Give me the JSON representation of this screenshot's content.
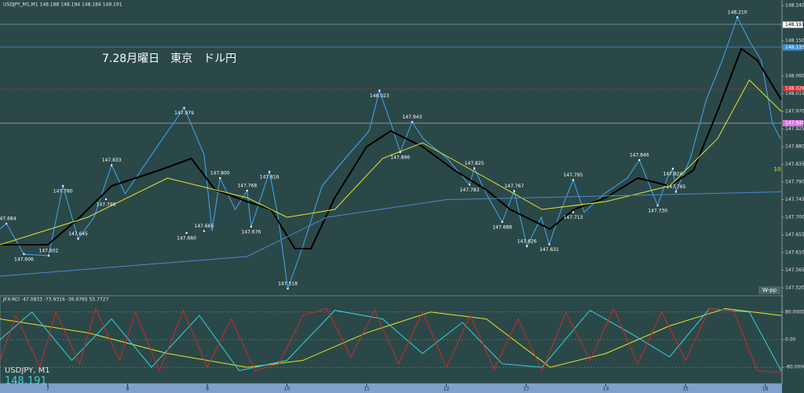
{
  "header": "USDJPY_M1,M1  148.188 148.194 148.184 148.191",
  "symbol": "USDJPY, M1",
  "price": "148.191",
  "pivot_label": "W-pp",
  "count_label": "10",
  "chart_data": [
    {
      "type": "line",
      "title": "7.28月曜日　東京　ドル円",
      "xlim": [
        6.4,
        16.2
      ],
      "xticks": [
        7,
        8,
        9,
        10,
        11,
        12,
        13,
        14,
        15,
        16
      ],
      "ylim": [
        147.504,
        148.254
      ],
      "yticks": [
        {
          "value": 148.24,
          "label": "148.240"
        },
        {
          "value": 148.15,
          "label": "148.150"
        },
        {
          "value": 148.06,
          "label": "148.060"
        },
        {
          "value": 148.015,
          "label": "148.015"
        },
        {
          "value": 147.97,
          "label": "147.970"
        },
        {
          "value": 147.925,
          "label": "147.925"
        },
        {
          "value": 147.88,
          "label": "147.880"
        },
        {
          "value": 147.835,
          "label": "147.835"
        },
        {
          "value": 147.79,
          "label": "147.790"
        },
        {
          "value": 147.745,
          "label": "147.745"
        },
        {
          "value": 147.7,
          "label": "147.700"
        },
        {
          "value": 147.655,
          "label": "147.655"
        },
        {
          "value": 147.61,
          "label": "147.610"
        },
        {
          "value": 147.565,
          "label": "147.565"
        },
        {
          "value": 147.52,
          "label": "147.520"
        }
      ],
      "markers": [
        {
          "value": 148.191,
          "label": "148.191",
          "color": "#ffffff"
        },
        {
          "value": 148.133,
          "label": "148.133",
          "color": "#3a8fd8"
        },
        {
          "value": 148.028,
          "label": "148.028",
          "color": "#d03030"
        },
        {
          "value": 147.94,
          "label": "147.940",
          "color": "#e070e0"
        }
      ],
      "series": [
        {
          "color": "#3fa9f5",
          "x": [
            6.4,
            6.48,
            6.7,
            7.01,
            7.19,
            7.38,
            7.58,
            7.8,
            7.97,
            8.37,
            8.71,
            8.96,
            9.06,
            9.16,
            9.35,
            9.5,
            9.55,
            9.78,
            9.89,
            10.01,
            10.19,
            10.44,
            10.73,
            11.03,
            11.16,
            11.32,
            11.42,
            11.57,
            11.71,
            12.01,
            12.29,
            12.35,
            12.5,
            12.7,
            12.85,
            13.01,
            13.19,
            13.29,
            13.44,
            13.59,
            13.73,
            13.98,
            14.27,
            14.42,
            14.65,
            14.77,
            14.84,
            14.88,
            15.06,
            15.26,
            15.46,
            15.65,
            15.8,
            15.95,
            16.09,
            16.19
          ],
          "values": [
            147.67,
            147.684,
            147.606,
            147.602,
            147.78,
            147.645,
            147.7,
            147.833,
            147.76,
            147.88,
            147.979,
            147.86,
            147.665,
            147.8,
            147.72,
            147.768,
            147.676,
            147.816,
            147.7,
            147.518,
            147.62,
            147.78,
            147.85,
            147.92,
            148.023,
            147.93,
            147.866,
            147.943,
            147.9,
            147.85,
            147.783,
            147.825,
            147.76,
            147.688,
            147.767,
            147.626,
            147.7,
            147.631,
            147.72,
            147.795,
            147.713,
            147.76,
            147.8,
            147.846,
            147.73,
            147.8,
            147.824,
            147.765,
            147.85,
            148.0,
            148.1,
            148.21,
            148.15,
            148.1,
            147.94,
            147.9
          ]
        },
        {
          "color": "#000000",
          "x": [
            6.4,
            7.0,
            7.4,
            7.8,
            8.4,
            8.8,
            9.1,
            9.5,
            9.8,
            10.1,
            10.3,
            10.6,
            11.0,
            11.3,
            11.7,
            12.1,
            12.5,
            12.8,
            13.3,
            13.6,
            14.0,
            14.4,
            14.8,
            15.1,
            15.4,
            15.7,
            15.9,
            16.2
          ],
          "values": [
            147.63,
            147.63,
            147.7,
            147.78,
            147.82,
            147.85,
            147.77,
            147.74,
            147.72,
            147.62,
            147.62,
            147.75,
            147.88,
            147.92,
            147.88,
            147.82,
            147.77,
            147.72,
            147.67,
            147.72,
            147.75,
            147.8,
            147.78,
            147.82,
            147.97,
            148.13,
            148.1,
            148.0
          ]
        },
        {
          "color": "#e6e62a",
          "x": [
            6.4,
            7.5,
            8.5,
            9.5,
            10.0,
            10.6,
            11.2,
            11.7,
            12.5,
            13.2,
            14.0,
            14.8,
            15.4,
            15.8,
            16.2
          ],
          "values": [
            147.63,
            147.7,
            147.8,
            147.75,
            147.7,
            147.72,
            147.85,
            147.89,
            147.8,
            147.72,
            147.74,
            147.78,
            147.9,
            148.05,
            147.97
          ]
        },
        {
          "color": "#4a8ad0",
          "x": [
            6.4,
            9.5,
            10.5,
            12.0,
            16.2
          ],
          "values": [
            147.55,
            147.6,
            147.7,
            147.745,
            147.765
          ]
        }
      ],
      "annotations": {
        "x": [
          6.48,
          6.7,
          7.01,
          7.19,
          7.8,
          7.73,
          7.38,
          8.71,
          9.16,
          8.74,
          8.96,
          9.55,
          9.5,
          9.78,
          10.01,
          11.16,
          11.57,
          11.42,
          12.35,
          12.29,
          12.85,
          12.7,
          13.01,
          13.29,
          13.59,
          13.59,
          14.42,
          14.84,
          14.88,
          14.65,
          15.65
        ],
        "values": [
          147.684,
          147.606,
          147.602,
          147.78,
          147.833,
          147.746,
          147.645,
          147.979,
          147.8,
          147.66,
          147.665,
          147.676,
          147.768,
          147.816,
          147.518,
          148.023,
          147.943,
          147.866,
          147.825,
          147.783,
          147.767,
          147.688,
          147.626,
          147.631,
          147.795,
          147.713,
          147.846,
          147.824,
          147.765,
          147.73,
          148.21
        ],
        "value_labels": [
          "147.684",
          "147.606",
          "147.602",
          "147.780",
          "147.833",
          "147.746",
          "147.645",
          "147.979",
          "147.800",
          "147.660",
          "147.665",
          "147.676",
          "147.768",
          "147.816",
          "147.518",
          "148.023",
          "147.943",
          "147.866",
          "147.825",
          "147.783",
          "147.767",
          "147.688",
          "147.626",
          "147.631",
          "147.795",
          "147.713",
          "147.846",
          "147.824",
          "147.765",
          "147.730",
          "148.210"
        ]
      }
    },
    {
      "type": "line",
      "title": "JFX-RCI -47.0833 -73.9316 -36.6765 55.7727",
      "xlim": [
        6.4,
        16.2
      ],
      "ylim": [
        -125,
        125
      ],
      "yticks": [
        {
          "value": 80,
          "label": "80.0000"
        },
        {
          "value": 0,
          "label": "0.00"
        },
        {
          "value": -80,
          "label": "-80.0000"
        }
      ],
      "series": [
        {
          "color": "#e6e62a",
          "x": [
            6.4,
            7.5,
            8.5,
            9.5,
            10.2,
            11.0,
            11.8,
            12.5,
            13.3,
            14.0,
            14.8,
            15.5,
            16.2
          ],
          "values": [
            60,
            20,
            -40,
            -80,
            -60,
            20,
            80,
            60,
            -80,
            -40,
            40,
            90,
            70
          ]
        },
        {
          "color": "#30d8e0",
          "x": [
            6.4,
            6.8,
            7.3,
            7.8,
            8.3,
            8.9,
            9.4,
            10.0,
            10.6,
            11.2,
            11.7,
            12.2,
            12.7,
            13.2,
            13.8,
            14.3,
            14.8,
            15.3,
            15.8,
            16.2
          ],
          "values": [
            0,
            80,
            -60,
            60,
            -80,
            70,
            -90,
            -60,
            85,
            60,
            -40,
            50,
            -70,
            -80,
            85,
            20,
            -50,
            90,
            80,
            -90
          ]
        },
        {
          "color": "#d02828",
          "x": [
            6.4,
            6.6,
            6.9,
            7.1,
            7.4,
            7.6,
            7.9,
            8.1,
            8.4,
            8.7,
            9.0,
            9.3,
            9.6,
            9.9,
            10.2,
            10.5,
            10.8,
            11.1,
            11.4,
            11.7,
            12.0,
            12.3,
            12.6,
            12.9,
            13.2,
            13.5,
            13.8,
            14.1,
            14.4,
            14.7,
            15.0,
            15.3,
            15.6,
            15.9,
            16.2
          ],
          "values": [
            -60,
            70,
            -80,
            80,
            -70,
            90,
            -60,
            80,
            -90,
            85,
            -80,
            60,
            -90,
            -70,
            70,
            90,
            -50,
            85,
            -70,
            80,
            -80,
            70,
            -85,
            60,
            -90,
            80,
            -60,
            90,
            -70,
            80,
            -60,
            90,
            85,
            -90,
            -95
          ]
        }
      ]
    }
  ]
}
